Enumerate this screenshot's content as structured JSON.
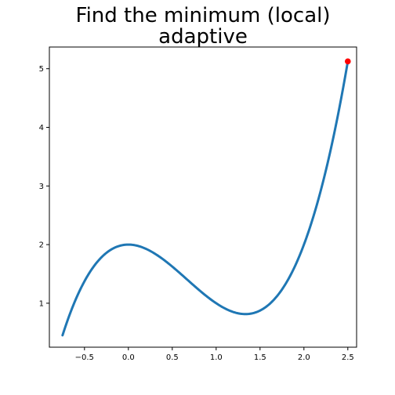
{
  "chart_data": {
    "type": "line",
    "title_lines": [
      "Find the minimum (local)",
      "adaptive"
    ],
    "xlabel": "",
    "ylabel": "",
    "xlim": [
      -0.9,
      2.6
    ],
    "ylim": [
      0.25,
      5.37
    ],
    "x_ticks": [
      -0.5,
      0.0,
      0.5,
      1.0,
      1.5,
      2.0,
      2.5
    ],
    "x_tick_labels": [
      "−0.5",
      "0.0",
      "0.5",
      "1.0",
      "1.5",
      "2.0",
      "2.5"
    ],
    "y_ticks": [
      1,
      2,
      3,
      4,
      5
    ],
    "y_tick_labels": [
      "1",
      "2",
      "3",
      "4",
      "5"
    ],
    "grid": false,
    "series": [
      {
        "function": "x^3 - 2x^2 + 2",
        "x_range": [
          -0.75,
          2.5
        ],
        "color": "#1f77b4"
      }
    ],
    "marker": {
      "x": 2.5,
      "y": 5.125,
      "color": "#ff0000"
    }
  }
}
